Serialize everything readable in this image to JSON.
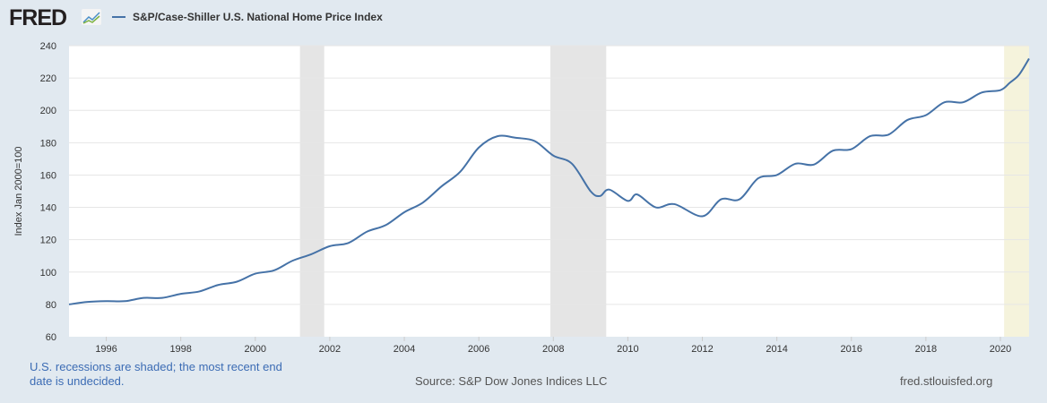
{
  "header": {
    "logo": "FRED",
    "legend_label": "S&P/Case-Shiller U.S. National Home Price Index"
  },
  "footer": {
    "note": "U.S. recessions are shaded; the most recent end date is undecided.",
    "source": "Source: S&P Dow Jones Indices LLC",
    "site": "fred.stlouisfed.org"
  },
  "colors": {
    "line": "#4572a7",
    "recession": "#e5e5e5",
    "recent_recession": "#f5f3dc"
  },
  "chart_data": {
    "type": "line",
    "title": "S&P/Case-Shiller U.S. National Home Price Index",
    "xlabel": "",
    "ylabel": "Index Jan 2000=100",
    "xlim": [
      1995.0,
      2020.77
    ],
    "ylim": [
      60,
      240
    ],
    "yticks": [
      60,
      80,
      100,
      120,
      140,
      160,
      180,
      200,
      220,
      240
    ],
    "xticks": [
      1996,
      1998,
      2000,
      2002,
      2004,
      2006,
      2008,
      2010,
      2012,
      2014,
      2016,
      2018,
      2020
    ],
    "grid": true,
    "legend_placement": "top-left",
    "recessions": [
      [
        2001.2,
        2001.85
      ],
      [
        2007.92,
        2009.42
      ],
      [
        2020.1,
        2020.77
      ]
    ],
    "series": [
      {
        "name": "S&P/Case-Shiller U.S. National Home Price Index",
        "x": [
          1995.0,
          1995.5,
          1996,
          1996.5,
          1997,
          1997.5,
          1998,
          1998.5,
          1999,
          1999.5,
          2000,
          2000.5,
          2001,
          2001.5,
          2002,
          2002.5,
          2003,
          2003.5,
          2004,
          2004.5,
          2005,
          2005.5,
          2006,
          2006.5,
          2007,
          2007.5,
          2008,
          2008.5,
          2009,
          2009.25,
          2009.5,
          2010,
          2010.25,
          2010.75,
          2011.25,
          2012,
          2012.5,
          2013,
          2013.5,
          2014,
          2014.5,
          2015,
          2015.5,
          2016,
          2016.5,
          2017,
          2017.5,
          2018,
          2018.5,
          2019,
          2019.5,
          2020,
          2020.25,
          2020.5,
          2020.77
        ],
        "values": [
          80,
          81.5,
          82,
          82,
          84,
          84,
          86.5,
          88,
          92,
          94,
          99,
          101,
          107,
          111,
          116,
          118,
          125,
          129,
          137,
          143,
          153,
          162,
          177,
          184,
          183,
          181,
          172,
          167,
          150,
          147,
          151,
          144,
          148,
          140,
          142,
          134.5,
          145,
          145,
          158,
          160,
          167,
          166.5,
          175,
          176,
          184,
          185,
          194,
          197,
          205,
          205,
          211,
          212.5,
          217,
          222,
          232
        ]
      }
    ]
  }
}
